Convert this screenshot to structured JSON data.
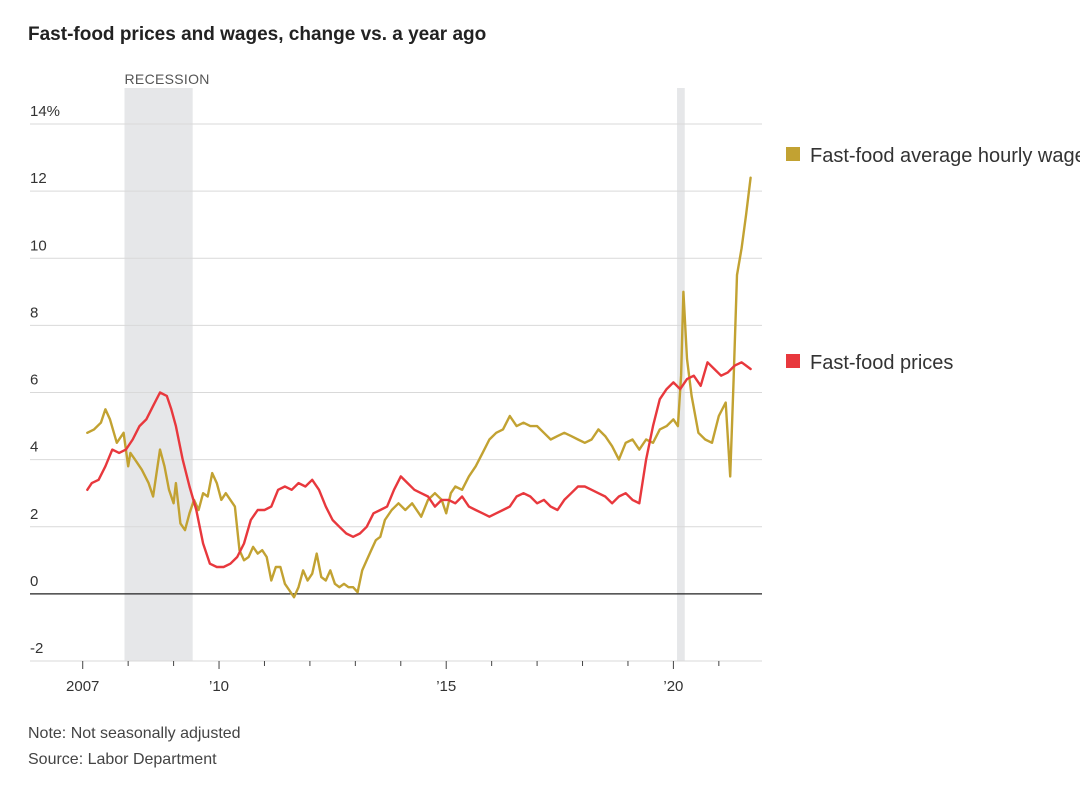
{
  "title": "Fast-food prices and wages, change vs. a year ago",
  "notes": {
    "note": "Note: Not seasonally adjusted",
    "source": "Source: Labor Department"
  },
  "chart_data": {
    "type": "line",
    "title": "Fast-food prices and wages, change vs. a year ago",
    "xlabel": "",
    "ylabel": "",
    "xlim": [
      2006.5,
      2021.95
    ],
    "ylim": [
      -2,
      14
    ],
    "y_ticks": [
      -2,
      0,
      2,
      4,
      6,
      8,
      10,
      12,
      14
    ],
    "y_tick_labels": [
      "-2",
      "0",
      "2",
      "4",
      "6",
      "8",
      "10",
      "12",
      "14%"
    ],
    "x_labeled_ticks": [
      2007,
      2010,
      2015,
      2020
    ],
    "x_tick_labels": [
      "2007",
      "’10",
      "’15",
      "’20"
    ],
    "x_minor_ticks": [
      2008,
      2009,
      2011,
      2012,
      2013,
      2014,
      2016,
      2017,
      2018,
      2019,
      2021
    ],
    "shaded_periods": [
      {
        "label": "RECESSION",
        "start": 2007.92,
        "end": 2009.42
      },
      {
        "label": "",
        "start": 2020.08,
        "end": 2020.25
      }
    ],
    "zero_line": true,
    "series": [
      {
        "name": "Fast-food average hourly wage",
        "color": "#c2a232",
        "x": [
          2007.1,
          2007.25,
          2007.4,
          2007.5,
          2007.6,
          2007.75,
          2007.9,
          2008.0,
          2008.05,
          2008.15,
          2008.3,
          2008.45,
          2008.55,
          2008.7,
          2008.8,
          2008.9,
          2009.0,
          2009.05,
          2009.15,
          2009.25,
          2009.35,
          2009.45,
          2009.55,
          2009.65,
          2009.75,
          2009.85,
          2009.95,
          2010.05,
          2010.15,
          2010.25,
          2010.35,
          2010.45,
          2010.55,
          2010.65,
          2010.75,
          2010.85,
          2010.95,
          2011.05,
          2011.15,
          2011.25,
          2011.35,
          2011.45,
          2011.55,
          2011.65,
          2011.75,
          2011.85,
          2011.95,
          2012.05,
          2012.15,
          2012.25,
          2012.35,
          2012.45,
          2012.55,
          2012.65,
          2012.75,
          2012.85,
          2012.95,
          2013.05,
          2013.15,
          2013.25,
          2013.35,
          2013.45,
          2013.55,
          2013.65,
          2013.8,
          2013.95,
          2014.1,
          2014.25,
          2014.45,
          2014.6,
          2014.75,
          2014.9,
          2015.0,
          2015.1,
          2015.2,
          2015.35,
          2015.5,
          2015.65,
          2015.8,
          2015.95,
          2016.1,
          2016.25,
          2016.4,
          2016.55,
          2016.7,
          2016.85,
          2017.0,
          2017.15,
          2017.3,
          2017.45,
          2017.6,
          2017.75,
          2017.9,
          2018.05,
          2018.2,
          2018.35,
          2018.5,
          2018.65,
          2018.8,
          2018.95,
          2019.1,
          2019.25,
          2019.4,
          2019.55,
          2019.7,
          2019.85,
          2020.0,
          2020.1,
          2020.17,
          2020.22,
          2020.3,
          2020.4,
          2020.55,
          2020.7,
          2020.85,
          2021.0,
          2021.15,
          2021.25,
          2021.32,
          2021.4,
          2021.5,
          2021.6,
          2021.7
        ],
        "values": [
          4.8,
          4.9,
          5.1,
          5.5,
          5.2,
          4.5,
          4.8,
          3.8,
          4.2,
          4.0,
          3.7,
          3.3,
          2.9,
          4.3,
          3.8,
          3.1,
          2.7,
          3.3,
          2.1,
          1.9,
          2.4,
          2.8,
          2.5,
          3.0,
          2.9,
          3.6,
          3.3,
          2.8,
          3.0,
          2.8,
          2.6,
          1.3,
          1.0,
          1.1,
          1.4,
          1.2,
          1.3,
          1.1,
          0.4,
          0.8,
          0.8,
          0.3,
          0.1,
          -0.1,
          0.2,
          0.7,
          0.4,
          0.6,
          1.2,
          0.5,
          0.4,
          0.7,
          0.3,
          0.2,
          0.3,
          0.2,
          0.2,
          0.05,
          0.7,
          1.0,
          1.3,
          1.6,
          1.7,
          2.2,
          2.5,
          2.7,
          2.5,
          2.7,
          2.3,
          2.8,
          3.0,
          2.8,
          2.4,
          3.0,
          3.2,
          3.1,
          3.5,
          3.8,
          4.2,
          4.6,
          4.8,
          4.9,
          5.3,
          5.0,
          5.1,
          5.0,
          5.0,
          4.8,
          4.6,
          4.7,
          4.8,
          4.7,
          4.6,
          4.5,
          4.6,
          4.9,
          4.7,
          4.4,
          4.0,
          4.5,
          4.6,
          4.3,
          4.6,
          4.5,
          4.9,
          5.0,
          5.2,
          5.0,
          6.5,
          9.0,
          7.0,
          5.9,
          4.8,
          4.6,
          4.5,
          5.3,
          5.7,
          3.5,
          6.2,
          9.5,
          10.3,
          11.3,
          12.4
        ]
      },
      {
        "name": "Fast-food prices",
        "color": "#e8383d",
        "x": [
          2007.1,
          2007.2,
          2007.35,
          2007.5,
          2007.65,
          2007.8,
          2007.95,
          2008.1,
          2008.25,
          2008.4,
          2008.55,
          2008.7,
          2008.85,
          2008.95,
          2009.05,
          2009.2,
          2009.35,
          2009.5,
          2009.65,
          2009.8,
          2009.95,
          2010.1,
          2010.25,
          2010.4,
          2010.55,
          2010.7,
          2010.85,
          2011.0,
          2011.15,
          2011.3,
          2011.45,
          2011.6,
          2011.75,
          2011.9,
          2012.05,
          2012.2,
          2012.35,
          2012.5,
          2012.65,
          2012.8,
          2012.95,
          2013.1,
          2013.25,
          2013.4,
          2013.55,
          2013.7,
          2013.85,
          2014.0,
          2014.15,
          2014.3,
          2014.45,
          2014.6,
          2014.75,
          2014.9,
          2015.05,
          2015.2,
          2015.35,
          2015.5,
          2015.65,
          2015.8,
          2015.95,
          2016.1,
          2016.25,
          2016.4,
          2016.55,
          2016.7,
          2016.85,
          2017.0,
          2017.15,
          2017.3,
          2017.45,
          2017.6,
          2017.75,
          2017.9,
          2018.05,
          2018.2,
          2018.35,
          2018.5,
          2018.65,
          2018.8,
          2018.95,
          2019.1,
          2019.25,
          2019.4,
          2019.55,
          2019.7,
          2019.85,
          2020.0,
          2020.15,
          2020.3,
          2020.45,
          2020.6,
          2020.75,
          2020.9,
          2021.05,
          2021.2,
          2021.35,
          2021.5,
          2021.6,
          2021.7
        ],
        "values": [
          3.1,
          3.3,
          3.4,
          3.8,
          4.3,
          4.2,
          4.3,
          4.6,
          5.0,
          5.2,
          5.6,
          6.0,
          5.9,
          5.5,
          5.0,
          4.0,
          3.2,
          2.5,
          1.5,
          0.9,
          0.8,
          0.8,
          0.9,
          1.1,
          1.5,
          2.2,
          2.5,
          2.5,
          2.6,
          3.1,
          3.2,
          3.1,
          3.3,
          3.2,
          3.4,
          3.1,
          2.6,
          2.2,
          2.0,
          1.8,
          1.7,
          1.8,
          2.0,
          2.4,
          2.5,
          2.6,
          3.1,
          3.5,
          3.3,
          3.1,
          3.0,
          2.9,
          2.6,
          2.8,
          2.8,
          2.7,
          2.9,
          2.6,
          2.5,
          2.4,
          2.3,
          2.4,
          2.5,
          2.6,
          2.9,
          3.0,
          2.9,
          2.7,
          2.8,
          2.6,
          2.5,
          2.8,
          3.0,
          3.2,
          3.2,
          3.1,
          3.0,
          2.9,
          2.7,
          2.9,
          3.0,
          2.8,
          2.7,
          4.0,
          5.0,
          5.8,
          6.1,
          6.3,
          6.1,
          6.4,
          6.5,
          6.2,
          6.9,
          6.7,
          6.5,
          6.6,
          6.8,
          6.9,
          6.8,
          6.7
        ]
      }
    ]
  }
}
